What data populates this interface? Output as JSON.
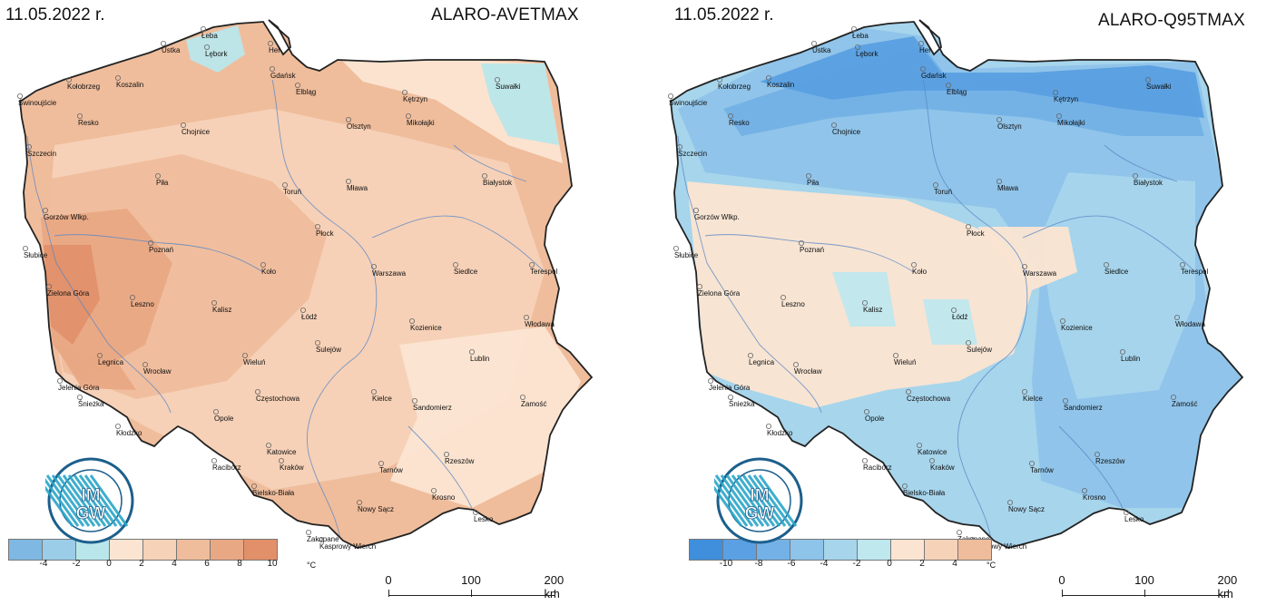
{
  "panels": [
    {
      "date": "11.05.2022 r.",
      "product": "ALARO-AVETMAX",
      "legend": {
        "unit": "°C",
        "colors": [
          "#7fb8e2",
          "#9bcde8",
          "#b9e6ea",
          "#fbe5d2",
          "#f6d2b8",
          "#efbd9c",
          "#e9a884",
          "#e2906a"
        ],
        "labels": [
          "-4",
          "-2",
          "0",
          "2",
          "4",
          "6",
          "8",
          "10"
        ]
      },
      "scale": {
        "labels": [
          "0",
          "100",
          "200 km"
        ]
      },
      "logo": {
        "lettering": "IMGW",
        "name": "imgw-logo"
      }
    },
    {
      "date": "11.05.2022 r.",
      "product": "ALARO-Q95TMAX",
      "legend": {
        "unit": "°C",
        "colors": [
          "#3f8fdc",
          "#5aa0e2",
          "#73b1e6",
          "#8ec3ea",
          "#a6d5ec",
          "#bfe7ee",
          "#fbe5d2",
          "#f6d2b8",
          "#efbd9c"
        ],
        "labels": [
          "-10",
          "-8",
          "-6",
          "-4",
          "-2",
          "0",
          "2",
          "4"
        ]
      },
      "scale": {
        "labels": [
          "0",
          "100",
          "200 km"
        ]
      },
      "logo": {
        "lettering": "IMGW",
        "name": "imgw-logo"
      }
    }
  ],
  "cities": [
    "Łeba",
    "Ustka",
    "Lębork",
    "Hel",
    "Gdańsk",
    "Elbląg",
    "Kołobrzeg",
    "Koszalin",
    "Świnoujście",
    "Resko",
    "Kętrzyn",
    "Suwałki",
    "Mikołajki",
    "Olsztyn",
    "Chojnice",
    "Szczecin",
    "Piła",
    "Toruń",
    "Mława",
    "Białystok",
    "Gorzów Wlkp.",
    "Płock",
    "Poznań",
    "Słubice",
    "Koło",
    "Warszawa",
    "Siedlce",
    "Terespol",
    "Zielona Góra",
    "Leszno",
    "Kalisz",
    "Łódź",
    "Kozienice",
    "Włodawa",
    "Sulejów",
    "Legnica",
    "Wrocław",
    "Wieluń",
    "Lublin",
    "Jelenia Góra",
    "Śnieżka",
    "Częstochowa",
    "Kielce",
    "Sandomierz",
    "Zamość",
    "Opole",
    "Kłodzko",
    "Katowice",
    "Racibórz",
    "Kraków",
    "Tarnów",
    "Rzeszów",
    "Bielsko-Biała",
    "Nowy Sącz",
    "Krosno",
    "Lesko",
    "Zakopane",
    "Kasprowy Wierch"
  ]
}
